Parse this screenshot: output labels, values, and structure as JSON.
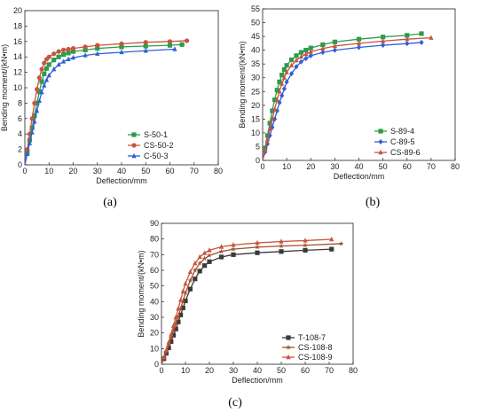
{
  "chart_data": [
    {
      "panel_label": "(a)",
      "type": "line",
      "xlabel": "Deflection/mm",
      "ylabel": "Bending moment/(kN•m)",
      "xlim": [
        0,
        80
      ],
      "ylim": [
        0,
        20
      ],
      "xticks": [
        0,
        10,
        20,
        30,
        40,
        50,
        60,
        70,
        80
      ],
      "yticks": [
        0,
        2,
        4,
        6,
        8,
        10,
        12,
        14,
        16,
        18,
        20
      ],
      "legend_position": "bottom-right",
      "series": [
        {
          "name": "S-50-1",
          "color": "#2e9b4a",
          "marker": "square",
          "x": [
            0,
            1,
            2,
            3,
            4,
            5,
            6,
            7,
            8,
            9,
            10,
            12,
            14,
            16,
            18,
            20,
            25,
            30,
            40,
            50,
            60,
            65
          ],
          "y": [
            0,
            1.6,
            3.2,
            4.8,
            6.4,
            8.0,
            9.5,
            10.8,
            11.8,
            12.5,
            13.0,
            13.6,
            14.0,
            14.3,
            14.5,
            14.7,
            14.9,
            15.1,
            15.3,
            15.4,
            15.5,
            15.6
          ]
        },
        {
          "name": "CS-50-2",
          "color": "#c8553d",
          "marker": "circle",
          "x": [
            0,
            1,
            2,
            3,
            4,
            5,
            6,
            7,
            8,
            9,
            10,
            12,
            14,
            16,
            18,
            20,
            25,
            30,
            40,
            50,
            60,
            67
          ],
          "y": [
            0,
            2.0,
            4.0,
            6.0,
            8.0,
            9.8,
            11.3,
            12.4,
            13.2,
            13.7,
            14.0,
            14.4,
            14.7,
            14.9,
            15.0,
            15.1,
            15.3,
            15.5,
            15.7,
            15.9,
            16.0,
            16.1
          ]
        },
        {
          "name": "C-50-3",
          "color": "#2f5fd6",
          "marker": "triangle",
          "x": [
            0,
            1,
            2,
            3,
            4,
            5,
            6,
            7,
            8,
            9,
            10,
            12,
            14,
            16,
            18,
            20,
            25,
            30,
            40,
            50,
            62
          ],
          "y": [
            0,
            1.4,
            2.8,
            4.2,
            5.6,
            7.0,
            8.3,
            9.4,
            10.3,
            11.0,
            11.6,
            12.4,
            13.0,
            13.4,
            13.7,
            13.9,
            14.2,
            14.4,
            14.6,
            14.8,
            15.0
          ]
        }
      ]
    },
    {
      "panel_label": "(b)",
      "type": "line",
      "xlabel": "Deflection/mm",
      "ylabel": "Bending moment/(kN•m)",
      "xlim": [
        0,
        80
      ],
      "ylim": [
        0,
        55
      ],
      "xticks": [
        0,
        10,
        20,
        30,
        40,
        50,
        60,
        70,
        80
      ],
      "yticks": [
        0,
        5,
        10,
        15,
        20,
        25,
        30,
        35,
        40,
        45,
        50,
        55
      ],
      "legend_position": "bottom-right",
      "series": [
        {
          "name": "S-89-4",
          "color": "#2e9b4a",
          "marker": "square",
          "x": [
            0,
            1,
            2,
            3,
            4,
            5,
            6,
            7,
            8,
            9,
            10,
            12,
            14,
            16,
            18,
            20,
            25,
            30,
            40,
            50,
            60,
            66
          ],
          "y": [
            0,
            4.5,
            9.0,
            13.5,
            18.0,
            22.0,
            25.5,
            28.5,
            31.0,
            33.0,
            34.5,
            36.5,
            38.0,
            39.2,
            40.0,
            40.8,
            42.0,
            43.0,
            44.0,
            44.8,
            45.4,
            46.0
          ]
        },
        {
          "name": "C-89-5",
          "color": "#2f5fd6",
          "marker": "diamond",
          "x": [
            0,
            1,
            2,
            3,
            4,
            5,
            6,
            7,
            8,
            9,
            10,
            12,
            14,
            16,
            18,
            20,
            25,
            30,
            40,
            50,
            60,
            66
          ],
          "y": [
            0,
            3.0,
            6.0,
            9.0,
            12.0,
            15.0,
            18.0,
            21.0,
            23.5,
            26.0,
            28.5,
            31.5,
            34.0,
            35.8,
            37.0,
            38.0,
            39.2,
            40.0,
            41.0,
            41.8,
            42.4,
            42.8
          ]
        },
        {
          "name": "CS-89-6",
          "color": "#c8553d",
          "marker": "triangle",
          "x": [
            0,
            1,
            2,
            3,
            4,
            5,
            6,
            7,
            8,
            9,
            10,
            12,
            14,
            16,
            18,
            20,
            25,
            30,
            40,
            50,
            60,
            70
          ],
          "y": [
            0,
            3.8,
            7.6,
            11.4,
            15.0,
            18.5,
            22.0,
            25.0,
            27.8,
            30.0,
            32.0,
            34.5,
            36.3,
            37.6,
            38.6,
            39.4,
            40.6,
            41.5,
            42.5,
            43.3,
            44.0,
            44.5
          ]
        }
      ]
    },
    {
      "panel_label": "(c)",
      "type": "line",
      "xlabel": "Deflection/mm",
      "ylabel": "Bending moment/(kN•m)",
      "xlim": [
        0,
        80
      ],
      "ylim": [
        0,
        90
      ],
      "xticks": [
        0,
        10,
        20,
        30,
        40,
        50,
        60,
        70,
        80
      ],
      "yticks": [
        0,
        10,
        20,
        30,
        40,
        50,
        60,
        70,
        80,
        90
      ],
      "legend_position": "bottom-right",
      "series": [
        {
          "name": "T-108-7",
          "color": "#3a3a3a",
          "marker": "square",
          "x": [
            0,
            1,
            2,
            3,
            4,
            5,
            6,
            7,
            8,
            9,
            10,
            12,
            14,
            16,
            18,
            20,
            25,
            30,
            40,
            50,
            60,
            71
          ],
          "y": [
            0,
            3.5,
            7.0,
            10.5,
            14.5,
            18.5,
            22.5,
            27.0,
            31.5,
            36.0,
            40.5,
            48.0,
            54.5,
            59.5,
            63.0,
            65.5,
            68.5,
            70.0,
            71.2,
            72.0,
            72.8,
            73.5
          ]
        },
        {
          "name": "CS-108-8",
          "color": "#a0522d",
          "marker": "star",
          "x": [
            0,
            1,
            2,
            3,
            4,
            5,
            6,
            7,
            8,
            9,
            10,
            12,
            14,
            16,
            18,
            20,
            25,
            30,
            40,
            50,
            60,
            75
          ],
          "y": [
            0,
            4.0,
            8.0,
            12.5,
            17.0,
            21.5,
            26.0,
            30.5,
            35.5,
            40.5,
            45.5,
            53.5,
            60.0,
            64.5,
            67.5,
            69.5,
            72.0,
            73.5,
            74.8,
            75.5,
            76.0,
            77.0
          ]
        },
        {
          "name": "CS-108-9",
          "color": "#c8553d",
          "marker": "triangle",
          "x": [
            0,
            1,
            2,
            3,
            4,
            5,
            6,
            7,
            8,
            9,
            10,
            12,
            14,
            16,
            18,
            20,
            25,
            30,
            40,
            50,
            60,
            71
          ],
          "y": [
            0,
            4.5,
            9.0,
            14.0,
            19.0,
            24.5,
            30.0,
            35.5,
            41.0,
            46.5,
            51.5,
            59.0,
            64.5,
            68.5,
            71.0,
            72.8,
            75.0,
            76.2,
            77.5,
            78.4,
            79.0,
            79.8
          ]
        }
      ]
    }
  ]
}
